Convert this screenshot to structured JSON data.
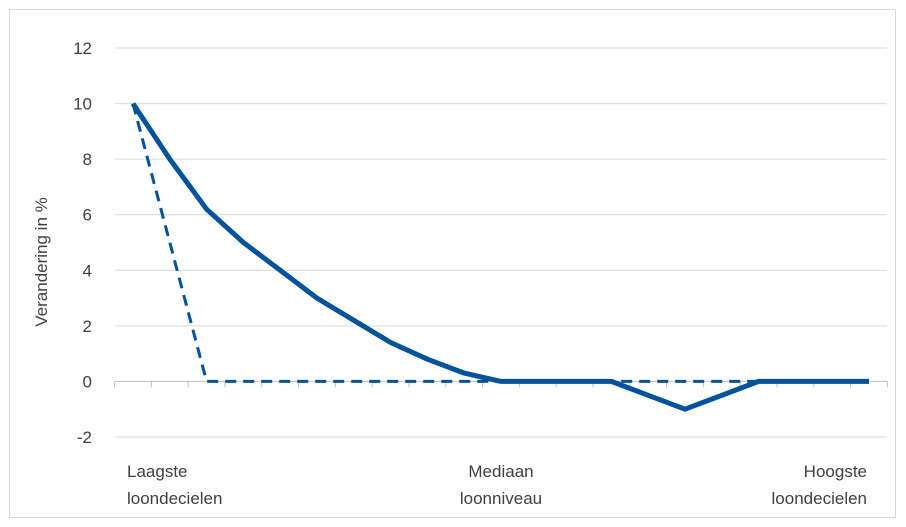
{
  "chart_data": {
    "type": "line",
    "title": "",
    "ylabel": "Verandering in %",
    "xlabel": "",
    "ylim": [
      -2,
      12
    ],
    "yticks": [
      -2,
      0,
      2,
      4,
      6,
      8,
      10,
      12
    ],
    "ytick_labels": [
      "-2",
      "0",
      "2",
      "4",
      "6",
      "8",
      "10",
      "12"
    ],
    "x_count": 21,
    "x": [
      0,
      1,
      2,
      3,
      4,
      5,
      6,
      7,
      8,
      9,
      10,
      11,
      12,
      13,
      14,
      15,
      16,
      17,
      18,
      19,
      20
    ],
    "category_labels": [
      {
        "index": 0,
        "lines": [
          "Laagste",
          "loondecielen"
        ],
        "anchor": "start"
      },
      {
        "index": 10,
        "lines": [
          "Mediaan",
          "loonniveau"
        ],
        "anchor": "middle"
      },
      {
        "index": 20,
        "lines": [
          "Hoogste",
          "loondecielen"
        ],
        "anchor": "end"
      }
    ],
    "grid": true,
    "legend": "none",
    "series": [
      {
        "style": "solid",
        "color": "#00539b",
        "values": [
          10,
          8,
          6.2,
          5,
          4,
          3,
          2.2,
          1.4,
          0.8,
          0.3,
          0,
          0,
          0,
          0,
          -0.5,
          -1,
          -0.5,
          0,
          0,
          0,
          0
        ]
      },
      {
        "style": "dashed",
        "color": "#00539b",
        "values": [
          10,
          5,
          0,
          0,
          0,
          0,
          0,
          0,
          0,
          0,
          0,
          0,
          0,
          0,
          0,
          0,
          0,
          0,
          0,
          0,
          0
        ]
      }
    ]
  }
}
